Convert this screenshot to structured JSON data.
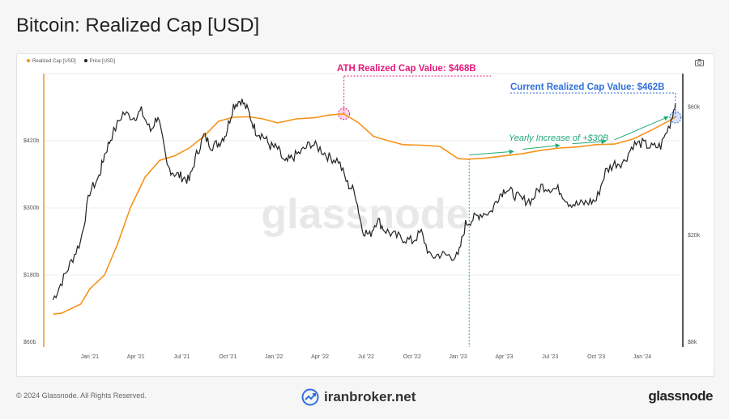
{
  "title": "Bitcoin: Realized Cap [USD]",
  "legend": {
    "realized_cap": "Realized Cap [USD]",
    "price": "Price [USD]",
    "realized_cap_color": "#f7931a",
    "price_color": "#222222"
  },
  "footer": {
    "copyright": "© 2024 Glassnode. All Rights Reserved.",
    "watermark_site": "iranbroker.net",
    "brand": "glassnode"
  },
  "chart_data": {
    "type": "line",
    "title": "Bitcoin: Realized Cap [USD]",
    "watermark": "glassnode",
    "x_tick_labels": [
      "Jan '21",
      "Apr '21",
      "Jul '21",
      "Oct '21",
      "Jan '22",
      "Apr '22",
      "Jul '22",
      "Oct '22",
      "Jan '23",
      "Apr '23",
      "Jul '23",
      "Oct '23",
      "Jan '24"
    ],
    "x_range": [
      2020.75,
      2024.22
    ],
    "y_left": {
      "label": "Realized Cap",
      "ticks": [
        "$60b",
        "$180b",
        "$300b",
        "$420b"
      ],
      "range": [
        60,
        540
      ]
    },
    "y_right": {
      "label": "Price",
      "scale": "log",
      "ticks": [
        "$8k",
        "$20k",
        "$60k"
      ],
      "range": [
        8000,
        80000
      ]
    },
    "annotations": {
      "ath": "ATH Realized Cap Value: $468B",
      "current": "Current Realized Cap Value: $462B",
      "yearly": "Yearly Increase of +$30B"
    },
    "series": [
      {
        "name": "Realized Cap [USD]",
        "axis": "left",
        "t": [
          2020.8,
          2020.85,
          2020.95,
          2021.0,
          2021.08,
          2021.15,
          2021.22,
          2021.3,
          2021.38,
          2021.46,
          2021.54,
          2021.62,
          2021.7,
          2021.78,
          2021.86,
          2021.94,
          2022.02,
          2022.12,
          2022.22,
          2022.3,
          2022.38,
          2022.46,
          2022.54,
          2022.62,
          2022.7,
          2022.8,
          2022.9,
          2023.0,
          2023.05,
          2023.15,
          2023.25,
          2023.35,
          2023.45,
          2023.55,
          2023.65,
          2023.75,
          2023.85,
          2023.95,
          2024.05,
          2024.13,
          2024.18
        ],
        "values": [
          110,
          112,
          128,
          155,
          180,
          235,
          300,
          355,
          385,
          393,
          407,
          428,
          455,
          462,
          463,
          459,
          452,
          459,
          461,
          466,
          468,
          452,
          428,
          420,
          413,
          412,
          410,
          388,
          387,
          389,
          393,
          397,
          403,
          407,
          409,
          413,
          414,
          423,
          439,
          453,
          462
        ]
      },
      {
        "name": "Price [USD]",
        "axis": "right",
        "t": [
          2020.8,
          2020.85,
          2020.9,
          2020.95,
          2021.0,
          2021.05,
          2021.08,
          2021.12,
          2021.18,
          2021.24,
          2021.28,
          2021.33,
          2021.37,
          2021.42,
          2021.46,
          2021.5,
          2021.54,
          2021.58,
          2021.62,
          2021.66,
          2021.7,
          2021.74,
          2021.78,
          2021.82,
          2021.86,
          2021.9,
          2021.94,
          2021.98,
          2022.02,
          2022.06,
          2022.1,
          2022.15,
          2022.2,
          2022.25,
          2022.3,
          2022.35,
          2022.4,
          2022.44,
          2022.48,
          2022.52,
          2022.56,
          2022.6,
          2022.65,
          2022.7,
          2022.75,
          2022.8,
          2022.85,
          2022.9,
          2022.95,
          2023.0,
          2023.04,
          2023.08,
          2023.12,
          2023.18,
          2023.22,
          2023.26,
          2023.3,
          2023.35,
          2023.4,
          2023.45,
          2023.5,
          2023.55,
          2023.6,
          2023.65,
          2023.7,
          2023.75,
          2023.8,
          2023.85,
          2023.9,
          2023.95,
          2024.0,
          2024.05,
          2024.1,
          2024.15,
          2024.18
        ],
        "values": [
          11500,
          13500,
          16000,
          19000,
          29000,
          33000,
          40000,
          47000,
          57000,
          55000,
          58000,
          49000,
          56000,
          36000,
          34000,
          33000,
          32000,
          40000,
          47000,
          43000,
          44000,
          48000,
          61000,
          64000,
          58000,
          49000,
          47000,
          43000,
          42000,
          37000,
          39000,
          41000,
          44000,
          42000,
          39000,
          38000,
          31000,
          29000,
          21000,
          20000,
          23000,
          21000,
          20000,
          19500,
          19000,
          20500,
          16500,
          17000,
          16800,
          16600,
          22000,
          23000,
          24000,
          24500,
          28000,
          30000,
          28500,
          27000,
          27000,
          30500,
          30000,
          29500,
          26500,
          26000,
          26500,
          27000,
          34500,
          37000,
          37500,
          43500,
          44000,
          42500,
          43000,
          52000,
          62000
        ]
      }
    ]
  }
}
